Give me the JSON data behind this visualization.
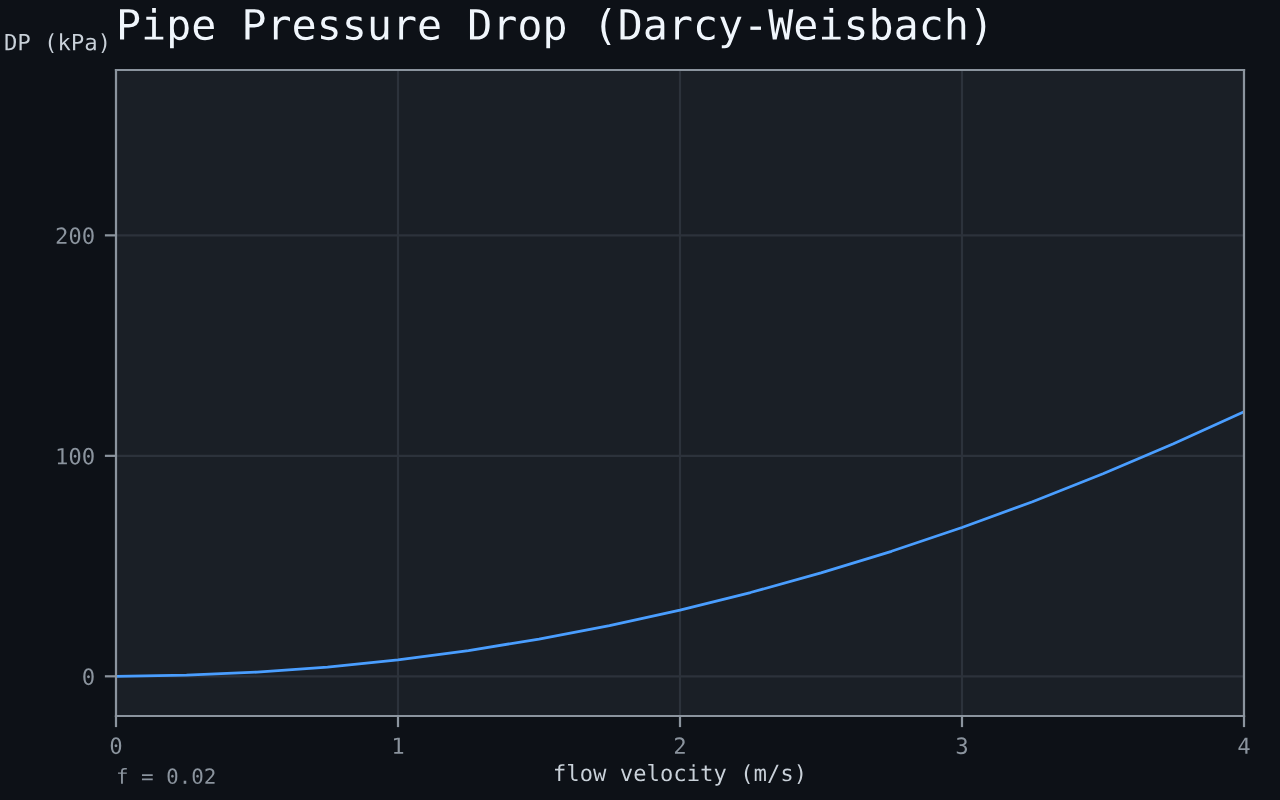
{
  "chart_data": {
    "type": "line",
    "title": "Pipe Pressure Drop (Darcy-Weisbach)",
    "xlabel": "flow velocity (m/s)",
    "ylabel": "DP (kPa)",
    "x": [
      0,
      0.25,
      0.5,
      0.75,
      1,
      1.25,
      1.5,
      1.75,
      2,
      2.25,
      2.5,
      2.75,
      3,
      3.25,
      3.5,
      3.75,
      4
    ],
    "series": [
      {
        "color": "#4a9eff",
        "values": [
          0,
          0.5,
          1.9,
          4.2,
          7.5,
          11.7,
          16.9,
          23,
          30,
          38,
          46.9,
          56.7,
          67.5,
          79.2,
          91.9,
          105.5,
          120
        ]
      }
    ],
    "xlim": [
      0,
      4
    ],
    "xticks": [
      0,
      1,
      2,
      3,
      4
    ],
    "ylim": [
      -18,
      275
    ],
    "yticks": [
      0,
      100,
      200
    ],
    "grid": true,
    "legend": false,
    "marker": "none",
    "line_style": "solid",
    "annotations": [
      "f = 0.02"
    ]
  }
}
